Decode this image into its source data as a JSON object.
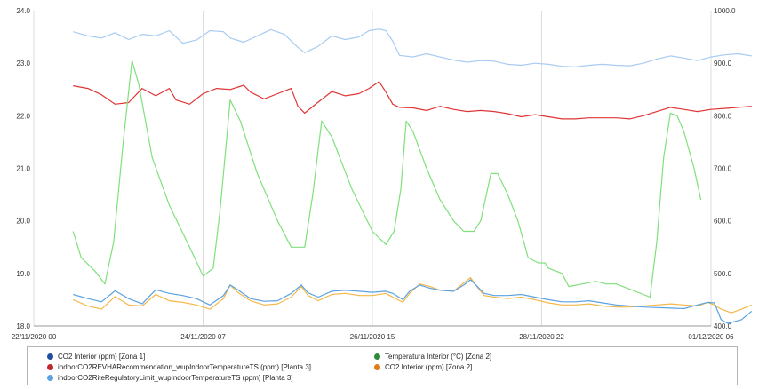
{
  "chart_data": {
    "type": "line",
    "x_ticks": [
      "22/11/2020 00",
      "24/11/2020 07",
      "26/11/2020 15",
      "28/11/2020 22",
      "01/12/2020 06"
    ],
    "y_left": {
      "ticks": [
        "18.0",
        "19.0",
        "20.0",
        "21.0",
        "22.0",
        "23.0",
        "24.0"
      ],
      "range": [
        18,
        24
      ]
    },
    "y_right": {
      "ticks": [
        "400.0",
        "500.0",
        "600.0",
        "700.0",
        "800.0",
        "900.0",
        "1000.0"
      ],
      "range": [
        400,
        1000
      ]
    },
    "grid": "vertical",
    "legend_position": "bottom",
    "series": [
      {
        "name": "CO2 Interior (ppm) [Zona 1]",
        "color": "#1f4e9e",
        "line_color": "#5aa2e0",
        "axis": "right",
        "points": [
          [
            0.58,
            460
          ],
          [
            0.8,
            452
          ],
          [
            1.0,
            446
          ],
          [
            1.2,
            467
          ],
          [
            1.4,
            452
          ],
          [
            1.6,
            442
          ],
          [
            1.8,
            469
          ],
          [
            2.0,
            462
          ],
          [
            2.2,
            458
          ],
          [
            2.4,
            452
          ],
          [
            2.6,
            440
          ],
          [
            2.8,
            458
          ],
          [
            2.9,
            478
          ],
          [
            3.0,
            470
          ],
          [
            3.2,
            452
          ],
          [
            3.4,
            447
          ],
          [
            3.6,
            448
          ],
          [
            3.8,
            462
          ],
          [
            3.95,
            478
          ],
          [
            4.05,
            463
          ],
          [
            4.2,
            455
          ],
          [
            4.4,
            466
          ],
          [
            4.6,
            468
          ],
          [
            4.8,
            466
          ],
          [
            5.0,
            464
          ],
          [
            5.2,
            466
          ],
          [
            5.3,
            462
          ],
          [
            5.45,
            450
          ],
          [
            5.55,
            466
          ],
          [
            5.7,
            478
          ],
          [
            5.85,
            472
          ],
          [
            6.0,
            468
          ],
          [
            6.2,
            466
          ],
          [
            6.35,
            478
          ],
          [
            6.45,
            488
          ],
          [
            6.55,
            475
          ],
          [
            6.65,
            462
          ],
          [
            6.8,
            458
          ],
          [
            7.0,
            458
          ],
          [
            7.2,
            460
          ],
          [
            7.4,
            455
          ],
          [
            7.6,
            450
          ],
          [
            7.8,
            446
          ],
          [
            8.0,
            446
          ],
          [
            8.2,
            448
          ],
          [
            8.4,
            444
          ],
          [
            8.6,
            440
          ],
          [
            8.8,
            438
          ],
          [
            9.0,
            436
          ],
          [
            9.2,
            435
          ],
          [
            9.4,
            434
          ],
          [
            9.6,
            433
          ],
          [
            9.8,
            440
          ],
          [
            9.95,
            445
          ],
          [
            10.05,
            444
          ],
          [
            10.15,
            412
          ],
          [
            10.25,
            405
          ],
          [
            10.45,
            412
          ],
          [
            10.6,
            428
          ]
        ]
      },
      {
        "name": "indoorCO2REVHARecommendation_wupIndoorTemperatureTS (ppm) [Planta 3]",
        "color": "#c0262d",
        "line_color": "#e03535",
        "axis": "right",
        "points": [
          [
            0.58,
            857
          ],
          [
            0.8,
            852
          ],
          [
            1.0,
            840
          ],
          [
            1.2,
            822
          ],
          [
            1.4,
            825
          ],
          [
            1.6,
            852
          ],
          [
            1.8,
            838
          ],
          [
            2.0,
            852
          ],
          [
            2.1,
            830
          ],
          [
            2.3,
            822
          ],
          [
            2.5,
            842
          ],
          [
            2.7,
            852
          ],
          [
            2.9,
            850
          ],
          [
            3.1,
            858
          ],
          [
            3.2,
            845
          ],
          [
            3.4,
            832
          ],
          [
            3.6,
            842
          ],
          [
            3.8,
            852
          ],
          [
            3.9,
            818
          ],
          [
            4.0,
            805
          ],
          [
            4.2,
            826
          ],
          [
            4.4,
            846
          ],
          [
            4.6,
            838
          ],
          [
            4.8,
            842
          ],
          [
            4.95,
            852
          ],
          [
            5.1,
            865
          ],
          [
            5.2,
            845
          ],
          [
            5.3,
            822
          ],
          [
            5.4,
            816
          ],
          [
            5.6,
            815
          ],
          [
            5.8,
            810
          ],
          [
            6.0,
            818
          ],
          [
            6.2,
            812
          ],
          [
            6.4,
            808
          ],
          [
            6.6,
            810
          ],
          [
            6.8,
            808
          ],
          [
            7.0,
            804
          ],
          [
            7.2,
            798
          ],
          [
            7.4,
            802
          ],
          [
            7.6,
            798
          ],
          [
            7.8,
            794
          ],
          [
            8.0,
            794
          ],
          [
            8.2,
            796
          ],
          [
            8.4,
            796
          ],
          [
            8.6,
            796
          ],
          [
            8.8,
            794
          ],
          [
            9.0,
            800
          ],
          [
            9.2,
            808
          ],
          [
            9.4,
            816
          ],
          [
            9.6,
            812
          ],
          [
            9.8,
            808
          ],
          [
            10.0,
            812
          ],
          [
            10.2,
            814
          ],
          [
            10.4,
            816
          ],
          [
            10.6,
            818
          ]
        ]
      },
      {
        "name": "indoorCO2RiteRegulatoryLimit_wupIndoorTemperatureTS (ppm) [Planta 3]",
        "color": "#5aa2e0",
        "line_color": "#a8cbf2",
        "axis": "right",
        "points": [
          [
            0.58,
            960
          ],
          [
            0.8,
            952
          ],
          [
            1.0,
            948
          ],
          [
            1.2,
            958
          ],
          [
            1.4,
            945
          ],
          [
            1.6,
            955
          ],
          [
            1.8,
            952
          ],
          [
            2.0,
            962
          ],
          [
            2.2,
            938
          ],
          [
            2.4,
            944
          ],
          [
            2.6,
            962
          ],
          [
            2.8,
            960
          ],
          [
            2.9,
            948
          ],
          [
            3.1,
            940
          ],
          [
            3.3,
            952
          ],
          [
            3.5,
            964
          ],
          [
            3.7,
            955
          ],
          [
            3.9,
            930
          ],
          [
            4.0,
            920
          ],
          [
            4.2,
            932
          ],
          [
            4.4,
            952
          ],
          [
            4.6,
            945
          ],
          [
            4.8,
            950
          ],
          [
            4.95,
            962
          ],
          [
            5.1,
            965
          ],
          [
            5.2,
            962
          ],
          [
            5.3,
            942
          ],
          [
            5.4,
            915
          ],
          [
            5.6,
            912
          ],
          [
            5.8,
            918
          ],
          [
            6.0,
            912
          ],
          [
            6.2,
            906
          ],
          [
            6.4,
            902
          ],
          [
            6.6,
            905
          ],
          [
            6.8,
            904
          ],
          [
            7.0,
            898
          ],
          [
            7.2,
            896
          ],
          [
            7.4,
            900
          ],
          [
            7.6,
            898
          ],
          [
            7.8,
            894
          ],
          [
            8.0,
            893
          ],
          [
            8.2,
            896
          ],
          [
            8.4,
            898
          ],
          [
            8.6,
            896
          ],
          [
            8.8,
            895
          ],
          [
            9.0,
            900
          ],
          [
            9.2,
            908
          ],
          [
            9.4,
            914
          ],
          [
            9.6,
            910
          ],
          [
            9.8,
            905
          ],
          [
            10.0,
            912
          ],
          [
            10.2,
            916
          ],
          [
            10.4,
            918
          ],
          [
            10.6,
            914
          ]
        ]
      },
      {
        "name": "Temperatura Interior (°C) [Zona 2]",
        "color": "#2e8b3a",
        "line_color": "#7fe07a",
        "axis": "left",
        "points": [
          [
            0.58,
            19.8
          ],
          [
            0.7,
            19.3
          ],
          [
            0.9,
            19.05
          ],
          [
            1.05,
            18.8
          ],
          [
            1.18,
            19.6
          ],
          [
            1.32,
            21.5
          ],
          [
            1.45,
            23.05
          ],
          [
            1.55,
            22.6
          ],
          [
            1.75,
            21.2
          ],
          [
            2.0,
            20.3
          ],
          [
            2.3,
            19.5
          ],
          [
            2.5,
            18.95
          ],
          [
            2.65,
            19.1
          ],
          [
            2.75,
            20.2
          ],
          [
            2.9,
            22.3
          ],
          [
            3.05,
            21.9
          ],
          [
            3.3,
            20.9
          ],
          [
            3.6,
            20.0
          ],
          [
            3.8,
            19.5
          ],
          [
            4.0,
            19.5
          ],
          [
            4.12,
            20.5
          ],
          [
            4.25,
            21.9
          ],
          [
            4.4,
            21.6
          ],
          [
            4.7,
            20.6
          ],
          [
            5.0,
            19.8
          ],
          [
            5.2,
            19.55
          ],
          [
            5.32,
            19.8
          ],
          [
            5.42,
            20.6
          ],
          [
            5.5,
            21.9
          ],
          [
            5.6,
            21.7
          ],
          [
            5.8,
            21.0
          ],
          [
            6.0,
            20.4
          ],
          [
            6.2,
            20.0
          ],
          [
            6.35,
            19.8
          ],
          [
            6.5,
            19.8
          ],
          [
            6.6,
            20.0
          ],
          [
            6.75,
            20.9
          ],
          [
            6.85,
            20.9
          ],
          [
            7.0,
            20.5
          ],
          [
            7.15,
            20.0
          ],
          [
            7.3,
            19.3
          ],
          [
            7.45,
            19.2
          ],
          [
            7.55,
            19.2
          ],
          [
            7.6,
            19.1
          ],
          [
            7.8,
            19.0
          ],
          [
            7.9,
            18.75
          ],
          [
            8.1,
            18.8
          ],
          [
            8.3,
            18.85
          ],
          [
            8.45,
            18.8
          ],
          [
            8.6,
            18.8
          ],
          [
            8.8,
            18.7
          ],
          [
            9.0,
            18.6
          ],
          [
            9.1,
            18.55
          ],
          [
            9.2,
            19.6
          ],
          [
            9.3,
            21.2
          ],
          [
            9.4,
            22.05
          ],
          [
            9.5,
            22.0
          ],
          [
            9.6,
            21.7
          ],
          [
            9.75,
            21.0
          ],
          [
            9.85,
            20.4
          ]
        ]
      },
      {
        "name": "CO2 Interior (ppm) [Zona 2]",
        "color": "#e07c1a",
        "line_color": "#f4b84a",
        "axis": "right",
        "points": [
          [
            0.58,
            450
          ],
          [
            0.8,
            438
          ],
          [
            1.0,
            432
          ],
          [
            1.2,
            456
          ],
          [
            1.4,
            440
          ],
          [
            1.6,
            438
          ],
          [
            1.8,
            460
          ],
          [
            2.0,
            448
          ],
          [
            2.2,
            445
          ],
          [
            2.4,
            440
          ],
          [
            2.6,
            432
          ],
          [
            2.8,
            452
          ],
          [
            2.9,
            478
          ],
          [
            3.0,
            465
          ],
          [
            3.2,
            448
          ],
          [
            3.4,
            440
          ],
          [
            3.6,
            442
          ],
          [
            3.8,
            455
          ],
          [
            3.95,
            475
          ],
          [
            4.05,
            458
          ],
          [
            4.2,
            448
          ],
          [
            4.4,
            460
          ],
          [
            4.6,
            462
          ],
          [
            4.8,
            458
          ],
          [
            5.0,
            458
          ],
          [
            5.2,
            462
          ],
          [
            5.3,
            455
          ],
          [
            5.45,
            445
          ],
          [
            5.55,
            462
          ],
          [
            5.7,
            480
          ],
          [
            5.85,
            475
          ],
          [
            6.0,
            468
          ],
          [
            6.2,
            466
          ],
          [
            6.35,
            482
          ],
          [
            6.45,
            492
          ],
          [
            6.55,
            474
          ],
          [
            6.65,
            458
          ],
          [
            6.8,
            455
          ],
          [
            7.0,
            452
          ],
          [
            7.2,
            455
          ],
          [
            7.4,
            450
          ],
          [
            7.6,
            444
          ],
          [
            7.8,
            440
          ],
          [
            8.0,
            440
          ],
          [
            8.2,
            442
          ],
          [
            8.4,
            438
          ],
          [
            8.6,
            436
          ],
          [
            8.8,
            436
          ],
          [
            9.0,
            438
          ],
          [
            9.2,
            440
          ],
          [
            9.4,
            442
          ],
          [
            9.6,
            440
          ],
          [
            9.8,
            438
          ],
          [
            9.95,
            445
          ],
          [
            10.05,
            440
          ],
          [
            10.15,
            432
          ],
          [
            10.3,
            425
          ],
          [
            10.45,
            432
          ],
          [
            10.6,
            440
          ]
        ]
      }
    ]
  }
}
